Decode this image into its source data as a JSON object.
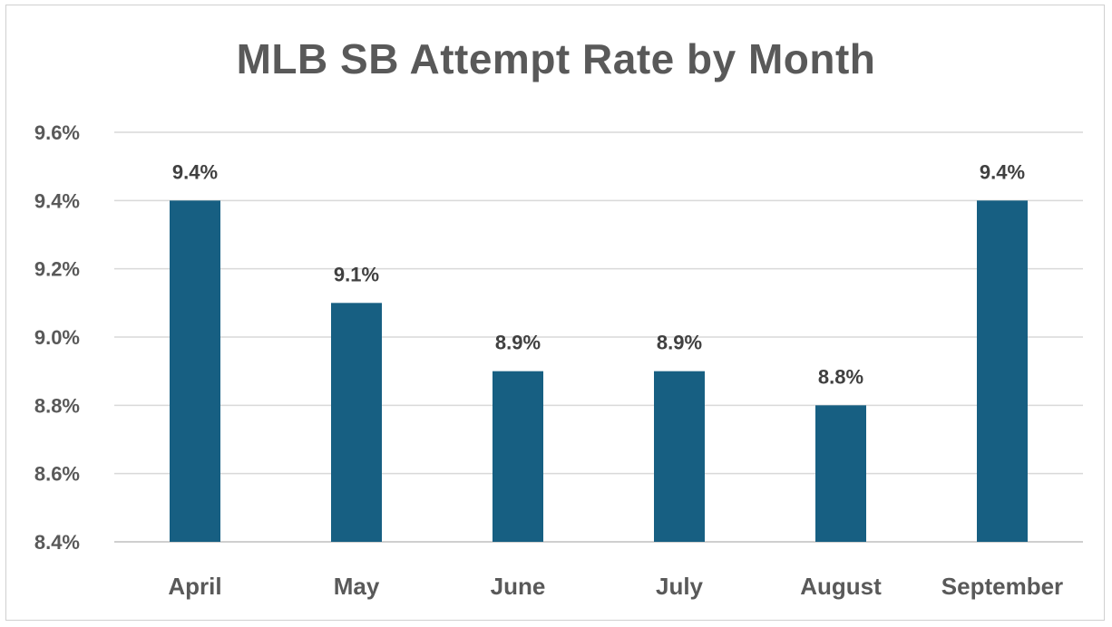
{
  "chart_data": {
    "type": "bar",
    "title": "MLB SB Attempt Rate by Month",
    "xlabel": "",
    "ylabel": "",
    "categories": [
      "April",
      "May",
      "June",
      "July",
      "August",
      "September"
    ],
    "values": [
      9.4,
      9.1,
      8.9,
      8.9,
      8.8,
      9.4
    ],
    "data_labels": [
      "9.4%",
      "9.1%",
      "8.9%",
      "8.9%",
      "8.8%",
      "9.4%"
    ],
    "ylim": [
      8.4,
      9.6
    ],
    "yticks": [
      8.4,
      8.6,
      8.8,
      9.0,
      9.2,
      9.4,
      9.6
    ],
    "ytick_labels": [
      "8.4%",
      "8.6%",
      "8.8%",
      "9.0%",
      "9.2%",
      "9.4%",
      "9.6%"
    ],
    "grid": true,
    "legend": "none",
    "bar_color": "#175F82",
    "gridline_color": "#D9D9D9",
    "text_color": "#595959"
  }
}
